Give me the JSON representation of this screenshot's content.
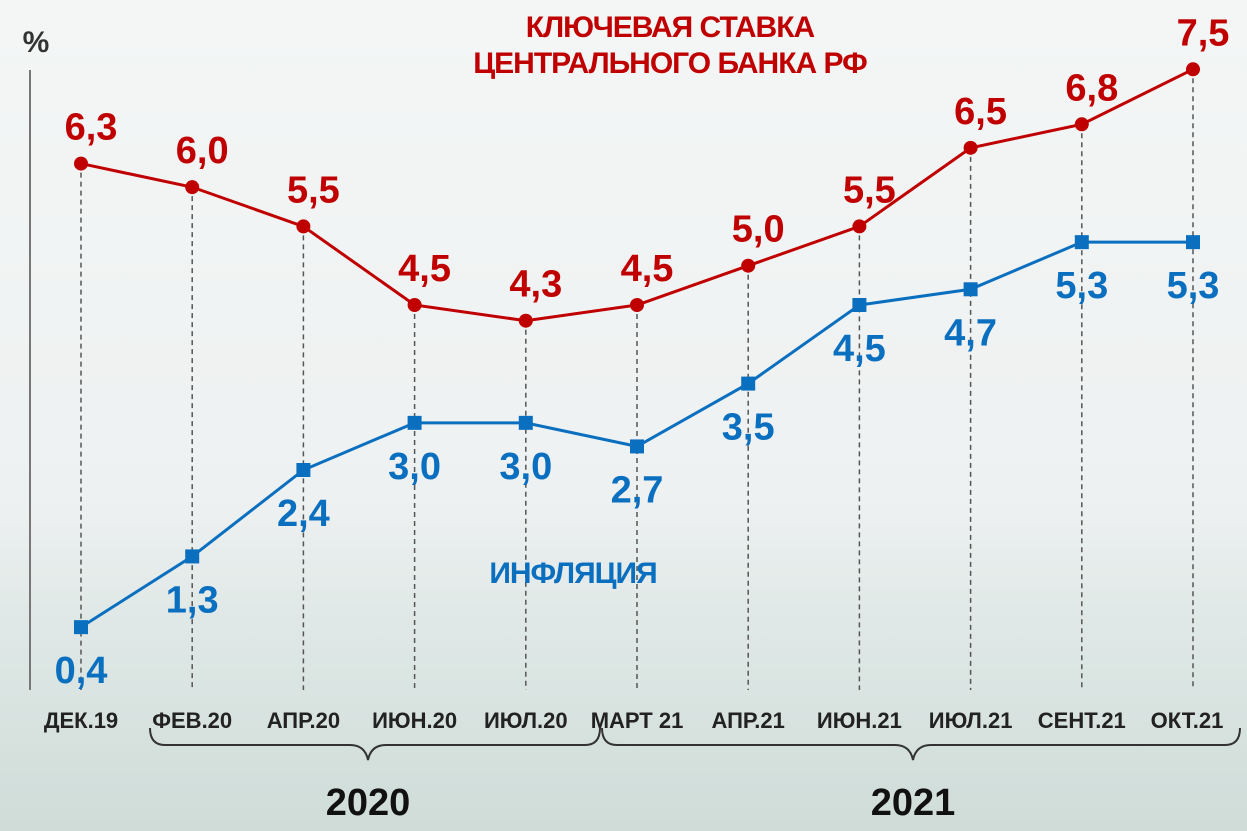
{
  "chart_data": {
    "type": "line",
    "y_label": "%",
    "categories": [
      "ДЕК.19",
      "ФЕВ.20",
      "АПР.20",
      "ИЮН.20",
      "ИЮЛ.20",
      "МАРТ 21",
      "АПР.21",
      "ИЮН.21",
      "ИЮЛ.21",
      "СЕНТ.21",
      "ОКТ.21"
    ],
    "x_group_labels": [
      "2020",
      "2021"
    ],
    "ylim": [
      -0.4,
      8
    ],
    "series": [
      {
        "name": "КЛЮЧЕВАЯ СТАВКА\nЦЕНТРАЛЬНОГО БАНКА РФ",
        "color": "#c00000",
        "marker": "circle",
        "values": [
          6.3,
          6.0,
          5.5,
          4.5,
          4.3,
          4.5,
          5.0,
          5.5,
          6.5,
          6.8,
          7.5
        ],
        "value_labels": [
          "6,3",
          "6,0",
          "5,5",
          "4,5",
          "4,3",
          "4,5",
          "5,0",
          "5,5",
          "6,5",
          "6,8",
          "7,5"
        ]
      },
      {
        "name": "ИНФЛЯЦИЯ",
        "color": "#0b6fc0",
        "marker": "square",
        "values": [
          0.4,
          1.3,
          2.4,
          3.0,
          3.0,
          2.7,
          3.5,
          4.5,
          4.7,
          5.3,
          5.3
        ],
        "value_labels": [
          "0,4",
          "1,3",
          "2,4",
          "3,0",
          "3,0",
          "2,7",
          "3,5",
          "4,5",
          "4,7",
          "5,3",
          "5,3"
        ]
      }
    ]
  }
}
